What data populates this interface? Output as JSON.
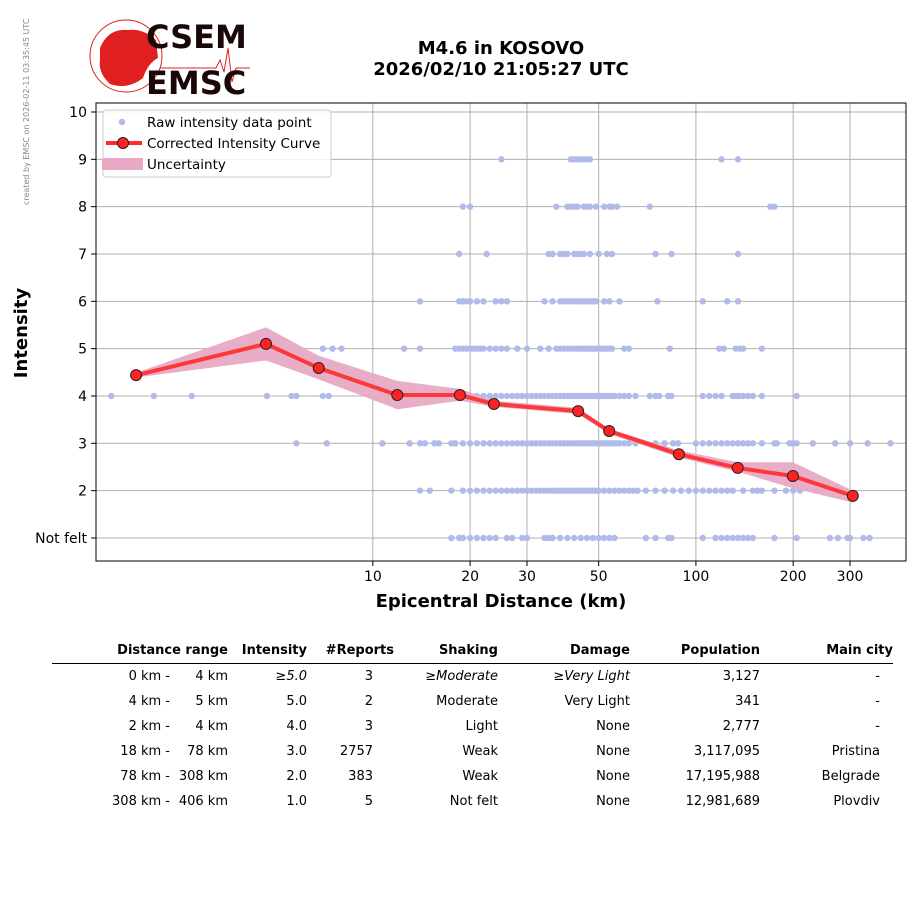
{
  "side_note": "created by EMSC on 2026-02-11 03:35:45 UTC",
  "logo": {
    "top": "CSEM",
    "bottom": "EMSC"
  },
  "title": {
    "line1": "M4.6 in KOSOVO",
    "line2": "2026/02/10 21:05:27 UTC"
  },
  "colors": {
    "raw": "#b0bbea",
    "curve": "#ff2a2a",
    "marker": "#ff2222",
    "band": "#e7a9c4"
  },
  "chart_data": {
    "type": "scatter",
    "xlabel": "Epicentral Distance (km)",
    "ylabel": "Intensity",
    "xscale": "log",
    "xlim": [
      1.39,
      447
    ],
    "ylim": [
      0.5,
      10.2
    ],
    "xticks": [
      {
        "v": 10,
        "label": "10"
      },
      {
        "v": 20,
        "label": "20"
      },
      {
        "v": 30,
        "label": "30"
      },
      {
        "v": 50,
        "label": "50"
      },
      {
        "v": 100,
        "label": "100"
      },
      {
        "v": 200,
        "label": "200"
      },
      {
        "v": 300,
        "label": "300"
      }
    ],
    "yticks": [
      {
        "v": 1,
        "label": "Not felt"
      },
      {
        "v": 2,
        "label": "2"
      },
      {
        "v": 3,
        "label": "3"
      },
      {
        "v": 4,
        "label": "4"
      },
      {
        "v": 5,
        "label": "5"
      },
      {
        "v": 6,
        "label": "6"
      },
      {
        "v": 7,
        "label": "7"
      },
      {
        "v": 8,
        "label": "8"
      },
      {
        "v": 9,
        "label": "9"
      },
      {
        "v": 10,
        "label": "10"
      }
    ],
    "grid": true,
    "legend": {
      "position": "top-left",
      "entries": [
        "Raw intensity data point",
        "Corrected Intensity Curve",
        "Uncertainty"
      ]
    },
    "raw_points": {
      "9": [
        25,
        41,
        42,
        43,
        44,
        45,
        46,
        47,
        120,
        135
      ],
      "8": [
        19,
        20,
        37,
        40,
        41,
        42,
        43,
        45,
        46,
        47,
        49,
        52,
        54,
        55,
        57,
        72,
        170,
        175
      ],
      "7": [
        18.5,
        22.5,
        35,
        36,
        38,
        39,
        40,
        42,
        43,
        44,
        45,
        47,
        50,
        53,
        55,
        75,
        84,
        135
      ],
      "6": [
        14,
        18.5,
        19,
        19.5,
        20,
        21,
        22,
        24,
        25,
        26,
        34,
        36,
        38,
        39,
        40,
        41,
        42,
        43,
        44,
        45,
        46,
        47,
        48,
        49,
        52,
        54,
        58,
        76,
        105,
        125,
        135
      ],
      "5": [
        7,
        7.5,
        8,
        12.5,
        14,
        18,
        18.5,
        19,
        19.5,
        20,
        20.5,
        21,
        21.5,
        22,
        23,
        24,
        25,
        26,
        28,
        30,
        33,
        35,
        37,
        38,
        39,
        40,
        41,
        42,
        43,
        44,
        45,
        46,
        47,
        48,
        49,
        50,
        51,
        52,
        53,
        54,
        55,
        60,
        62,
        83,
        118,
        122,
        133,
        137,
        140,
        160
      ],
      "4": [
        1.55,
        2.1,
        2.75,
        4.7,
        5.6,
        5.8,
        7.0,
        7.3,
        18,
        19,
        20,
        21,
        22,
        23,
        24,
        25,
        26,
        27,
        28,
        29,
        30,
        31,
        32,
        33,
        34,
        35,
        36,
        37,
        38,
        39,
        40,
        41,
        42,
        43,
        44,
        45,
        46,
        47,
        48,
        49,
        50,
        51,
        52,
        53,
        54,
        55,
        56,
        58,
        60,
        62,
        65,
        72,
        75,
        77,
        82,
        84,
        105,
        110,
        115,
        120,
        130,
        133,
        136,
        140,
        145,
        150,
        160,
        205
      ],
      "3": [
        5.8,
        7.2,
        10.7,
        13,
        14,
        14.5,
        15.5,
        16,
        17.5,
        18,
        19,
        20,
        21,
        22,
        23,
        24,
        25,
        26,
        27,
        28,
        29,
        30,
        31,
        32,
        33,
        34,
        35,
        36,
        37,
        38,
        39,
        40,
        41,
        42,
        43,
        44,
        45,
        46,
        47,
        48,
        49,
        50,
        51,
        52,
        53,
        54,
        55,
        56,
        57,
        58,
        60,
        62,
        65,
        75,
        80,
        85,
        88,
        100,
        105,
        110,
        115,
        120,
        125,
        130,
        135,
        140,
        145,
        150,
        160,
        175,
        178,
        195,
        200,
        205,
        230,
        270,
        300,
        340,
        400
      ],
      "2": [
        14,
        15,
        17.5,
        19,
        20,
        21,
        22,
        23,
        24,
        25,
        26,
        27,
        28,
        29,
        30,
        31,
        32,
        33,
        34,
        35,
        36,
        37,
        38,
        39,
        40,
        41,
        42,
        43,
        44,
        45,
        46,
        47,
        48,
        49,
        50,
        52,
        54,
        56,
        58,
        60,
        62,
        64,
        66,
        70,
        75,
        80,
        85,
        90,
        95,
        100,
        105,
        110,
        115,
        120,
        125,
        130,
        140,
        150,
        155,
        160,
        175,
        190,
        200,
        210,
        235
      ],
      "1": [
        17.5,
        18.5,
        19,
        20,
        21,
        22,
        23,
        24,
        26,
        27,
        29,
        30,
        34,
        35,
        36,
        38,
        40,
        42,
        44,
        46,
        48,
        50,
        52,
        54,
        56,
        70,
        75,
        82,
        84,
        105,
        115,
        120,
        125,
        130,
        135,
        140,
        145,
        150,
        175,
        205,
        260,
        275,
        295,
        300,
        330,
        345
      ]
    },
    "curve": [
      {
        "x": 1.85,
        "y": 4.44,
        "lo": 4.39,
        "hi": 4.49
      },
      {
        "x": 4.67,
        "y": 5.1,
        "lo": 4.75,
        "hi": 5.45
      },
      {
        "x": 6.8,
        "y": 4.59,
        "lo": 4.35,
        "hi": 4.85
      },
      {
        "x": 11.9,
        "y": 4.02,
        "lo": 3.72,
        "hi": 4.32
      },
      {
        "x": 18.6,
        "y": 4.02,
        "lo": 3.9,
        "hi": 4.15
      },
      {
        "x": 23.7,
        "y": 3.83,
        "lo": 3.77,
        "hi": 3.9
      },
      {
        "x": 43.2,
        "y": 3.68,
        "lo": 3.62,
        "hi": 3.75
      },
      {
        "x": 53.9,
        "y": 3.26,
        "lo": 3.2,
        "hi": 3.3
      },
      {
        "x": 88.6,
        "y": 2.77,
        "lo": 2.7,
        "hi": 2.85
      },
      {
        "x": 134.7,
        "y": 2.48,
        "lo": 2.4,
        "hi": 2.6
      },
      {
        "x": 199.6,
        "y": 2.31,
        "lo": 2.05,
        "hi": 2.6
      },
      {
        "x": 306,
        "y": 1.89,
        "lo": 1.75,
        "hi": 2.0
      }
    ]
  },
  "table": {
    "headers": [
      "Distance range",
      "Intensity",
      "#Reports",
      "Shaking",
      "Damage",
      "Population",
      "Main city"
    ],
    "rows": [
      {
        "from": "0 km -",
        "to": "4 km",
        "intensity": "≥5.0",
        "reports": "3",
        "shaking": "≥Moderate",
        "damage": "≥Very Light",
        "population": "3,127",
        "city": "-"
      },
      {
        "from": "4 km -",
        "to": "5 km",
        "intensity": "5.0",
        "reports": "2",
        "shaking": "Moderate",
        "damage": "Very Light",
        "population": "341",
        "city": "-"
      },
      {
        "from": "2 km -",
        "to": "4 km",
        "intensity": "4.0",
        "reports": "3",
        "shaking": "Light",
        "damage": "None",
        "population": "2,777",
        "city": "-"
      },
      {
        "from": "18 km -",
        "to": "78 km",
        "intensity": "3.0",
        "reports": "2757",
        "shaking": "Weak",
        "damage": "None",
        "population": "3,117,095",
        "city": "Pristina"
      },
      {
        "from": "78 km -",
        "to": "308 km",
        "intensity": "2.0",
        "reports": "383",
        "shaking": "Weak",
        "damage": "None",
        "population": "17,195,988",
        "city": "Belgrade"
      },
      {
        "from": "308 km -",
        "to": "406 km",
        "intensity": "1.0",
        "reports": "5",
        "shaking": "Not felt",
        "damage": "None",
        "population": "12,981,689",
        "city": "Plovdiv"
      }
    ]
  }
}
